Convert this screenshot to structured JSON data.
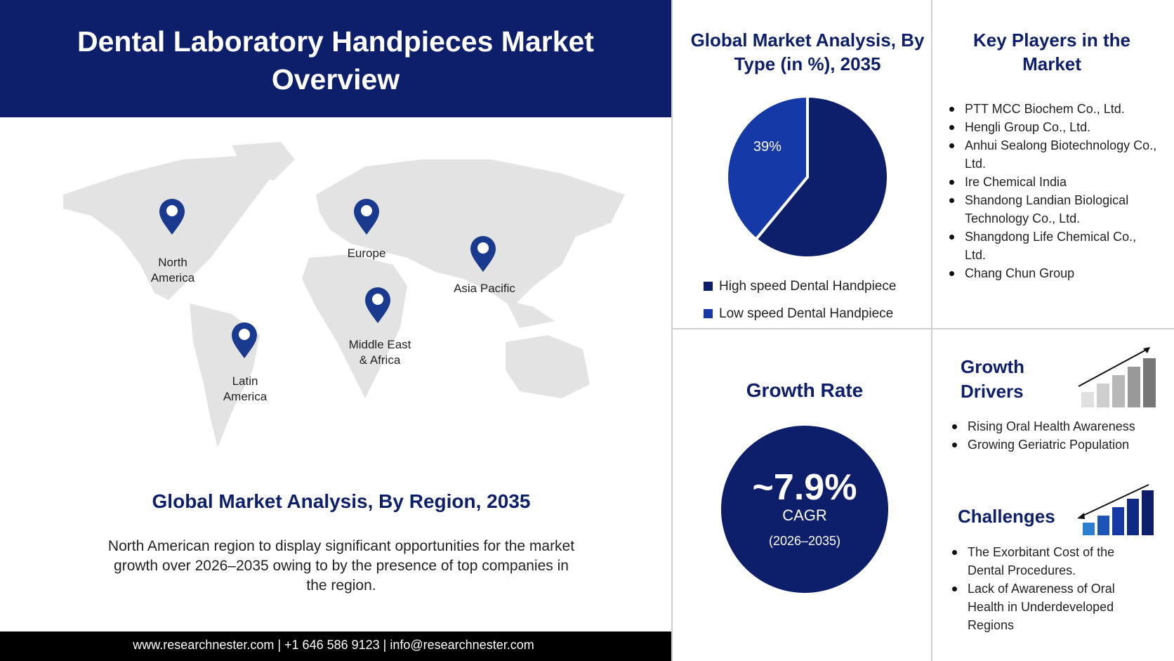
{
  "header": {
    "title": "Dental Laboratory Handpieces Market Overview"
  },
  "map": {
    "regions": [
      "North America",
      "Europe",
      "Asia Pacific",
      "Middle East & Africa",
      "Latin America"
    ],
    "title": "Global Market Analysis, By Region, 2035",
    "description": "North American region to display significant opportunities for the market growth over 2026–2035 owing to by the presence of top companies in the region."
  },
  "chart_data": {
    "type": "pie",
    "title": "Global Market Analysis, By Type (in %), 2035",
    "categories": [
      "High speed Dental Handpiece",
      "Low speed Dental Handpiece"
    ],
    "values": [
      61,
      39
    ],
    "value_labels": [
      null,
      "39%"
    ],
    "colors": [
      "#0d1f6b",
      "#1539a6"
    ]
  },
  "key_players": {
    "title": "Key Players in the Market",
    "items": [
      "PTT MCC Biochem Co., Ltd.",
      "Hengli Group Co., Ltd.",
      "Anhui Sealong Biotechnology Co., Ltd.",
      "Ire Chemical India",
      "Shandong Landian Biological Technology Co., Ltd.",
      "Shangdong Life Chemical Co., Ltd.",
      "Chang Chun Group"
    ]
  },
  "growth_rate": {
    "title": "Growth Rate",
    "value": "~7.9%",
    "label": "CAGR",
    "period": "(2026–2035)"
  },
  "growth_drivers": {
    "title": "Growth Drivers",
    "items": [
      "Rising Oral Health Awareness",
      "Growing Geriatric Population"
    ]
  },
  "challenges": {
    "title": "Challenges",
    "items": [
      "The Exorbitant Cost of the Dental Procedures.",
      "Lack of Awareness of Oral Health in Underdeveloped Regions"
    ]
  },
  "footer": {
    "text": "www.researchnester.com | +1 646 586 9123 | info@researchnester.com"
  }
}
